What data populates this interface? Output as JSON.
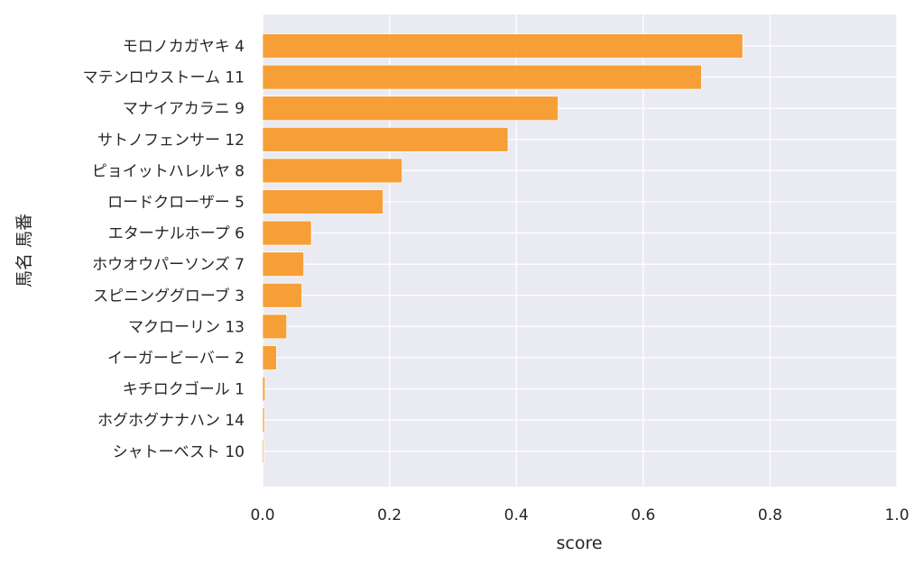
{
  "chart_data": {
    "type": "bar",
    "orientation": "horizontal",
    "categories": [
      "モロノカガヤキ 4",
      "マテンロウストーム 11",
      "マナイアカラニ 9",
      "サトノフェンサー 12",
      "ピョイットハレルヤ 8",
      "ロードクローザー 5",
      "エターナルホープ 6",
      "ホウオウパーソンズ 7",
      "スピニンググローブ 3",
      "マクローリン 13",
      "イーガービーバー 2",
      "キチロクゴール 1",
      "ホグホグナナハン 14",
      "シャトーベスト 10"
    ],
    "values": [
      0.757,
      0.692,
      0.466,
      0.387,
      0.22,
      0.19,
      0.077,
      0.065,
      0.062,
      0.038,
      0.022,
      0.004,
      0.003,
      0.002
    ],
    "xlabel": "score",
    "ylabel": "馬名 馬番",
    "xlim": [
      0.0,
      1.0
    ],
    "xticks": [
      "0.0",
      "0.2",
      "0.4",
      "0.6",
      "0.8",
      "1.0"
    ],
    "grid": true,
    "bar_color": "#f7941d",
    "plot_background": "#eaeaf2"
  }
}
